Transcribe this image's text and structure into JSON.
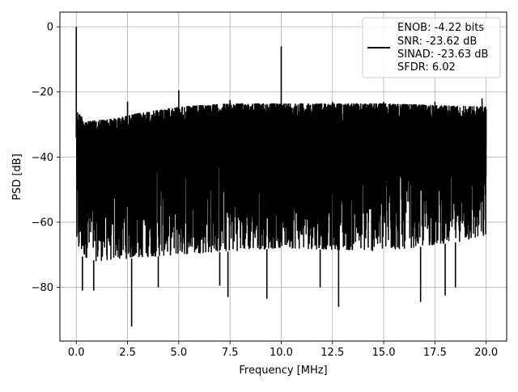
{
  "chart_data": {
    "type": "line",
    "title": "",
    "xlabel": "Frequency [MHz]",
    "ylabel": "PSD [dB]",
    "xlim": [
      -0.8,
      21.0
    ],
    "ylim": [
      -96.5,
      4.5
    ],
    "grid": true,
    "legend_position": "top-right",
    "x_ticks": [
      0.0,
      2.5,
      5.0,
      7.5,
      10.0,
      12.5,
      15.0,
      17.5,
      20.0
    ],
    "x_tick_labels": [
      "0.0",
      "2.5",
      "5.0",
      "7.5",
      "10.0",
      "12.5",
      "15.0",
      "17.5",
      "20.0"
    ],
    "y_ticks": [
      0,
      -20,
      -40,
      -60,
      -80
    ],
    "y_tick_labels": [
      "0",
      "−20",
      "−40",
      "−60",
      "−80"
    ],
    "series": [
      {
        "name": "ENOB: -4.22 bits\nSNR: -23.62 dB\nSINAD: -23.63 dB\nSFDR: 6.02",
        "color": "#000000",
        "line_width": 1.5,
        "peaks": [
          {
            "x": 0.0,
            "y": 0.0
          },
          {
            "x": 10.0,
            "y": -6.0
          },
          {
            "x": 5.0,
            "y": -19.5
          },
          {
            "x": 2.5,
            "y": -23.0
          },
          {
            "x": 7.5,
            "y": -22.5
          },
          {
            "x": 12.5,
            "y": -23.0
          },
          {
            "x": 15.0,
            "y": -23.0
          },
          {
            "x": 17.5,
            "y": -23.0
          },
          {
            "x": 19.8,
            "y": -22.0
          }
        ],
        "dips": [
          {
            "x": 0.3,
            "y": -81.0
          },
          {
            "x": 0.85,
            "y": -81.0
          },
          {
            "x": 2.7,
            "y": -92.0
          },
          {
            "x": 4.0,
            "y": -80.0
          },
          {
            "x": 7.0,
            "y": -79.5
          },
          {
            "x": 7.4,
            "y": -83.0
          },
          {
            "x": 9.3,
            "y": -83.5
          },
          {
            "x": 11.9,
            "y": -80.0
          },
          {
            "x": 12.8,
            "y": -86.0
          },
          {
            "x": 16.8,
            "y": -84.5
          },
          {
            "x": 18.0,
            "y": -82.5
          },
          {
            "x": 18.5,
            "y": -80.0
          }
        ],
        "noise_upper_envelope": [
          [
            0.05,
            -26.0
          ],
          [
            0.5,
            -29.0
          ],
          [
            2.0,
            -28.0
          ],
          [
            3.0,
            -26.5
          ],
          [
            5.0,
            -24.5
          ],
          [
            7.5,
            -23.5
          ],
          [
            10.0,
            -23.5
          ],
          [
            15.0,
            -23.5
          ],
          [
            20.0,
            -24.5
          ]
        ],
        "noise_lower_envelope": [
          [
            0.05,
            -70.0
          ],
          [
            1.0,
            -72.0
          ],
          [
            5.0,
            -70.0
          ],
          [
            10.0,
            -68.0
          ],
          [
            15.0,
            -69.0
          ],
          [
            20.0,
            -65.0
          ]
        ]
      }
    ],
    "legend_entries": [
      "ENOB: -4.22 bits",
      "SNR: -23.62 dB",
      "SINAD: -23.63 dB",
      "SFDR: 6.02"
    ]
  }
}
